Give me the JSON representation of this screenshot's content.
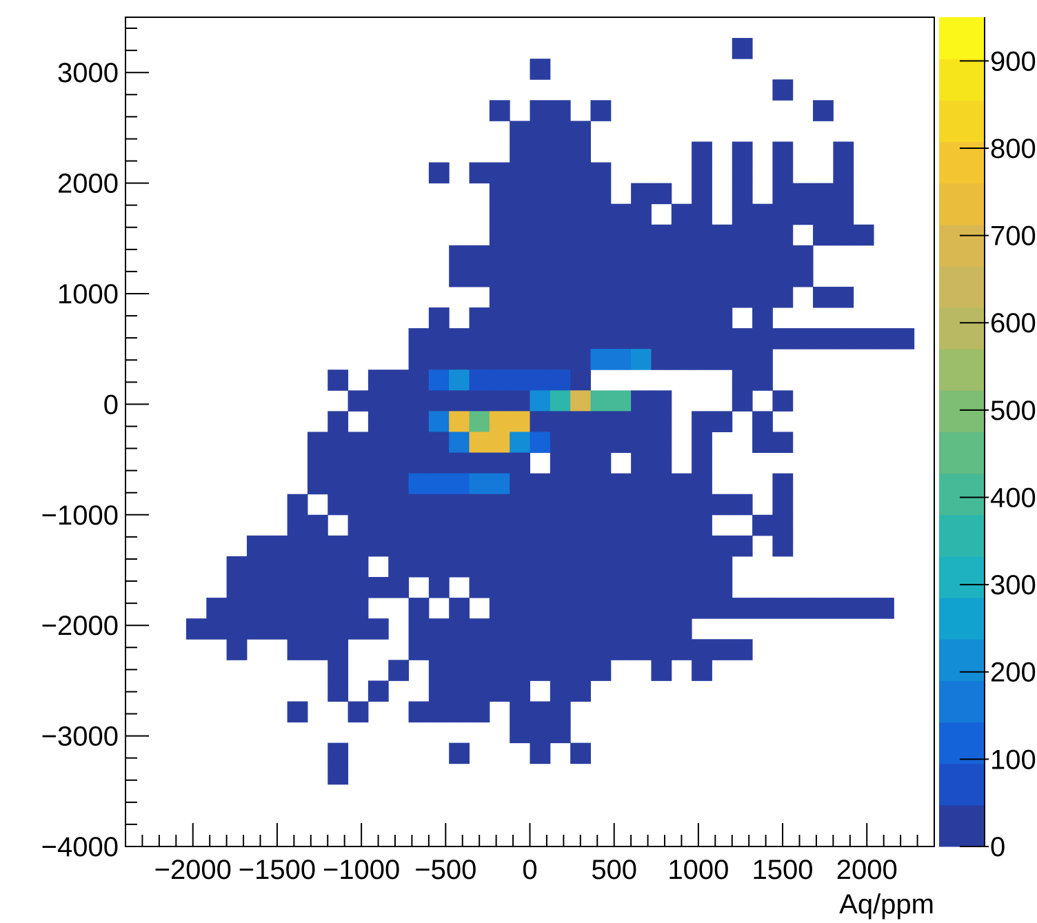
{
  "chart_data": {
    "type": "heatmap",
    "title": "",
    "xlabel": "Aq/ppm",
    "ylabel": "",
    "xlim": [
      -2400,
      2400
    ],
    "ylim": [
      -4000,
      3500
    ],
    "x_ticks": [
      -2000,
      -1500,
      -1000,
      -500,
      0,
      500,
      1000,
      1500,
      2000
    ],
    "x_tick_labels": [
      "−2000",
      "−1500",
      "−1000",
      "−500",
      "0",
      "500",
      "1000",
      "1500",
      "2000"
    ],
    "y_ticks": [
      -4000,
      -3000,
      -2000,
      -1000,
      0,
      1000,
      2000,
      3000
    ],
    "y_tick_labels": [
      "−4000",
      "−3000",
      "−2000",
      "−1000",
      "0",
      "1000",
      "2000",
      "3000"
    ],
    "colorbar": {
      "min": 0,
      "max": 950,
      "ticks": [
        0,
        100,
        200,
        300,
        400,
        500,
        600,
        700,
        800,
        900
      ],
      "tick_labels": [
        "0",
        "100",
        "200",
        "300",
        "400",
        "500",
        "600",
        "700",
        "800",
        "900"
      ],
      "palette": [
        "#2a3d9f",
        "#1b4fc8",
        "#1563d8",
        "#1479d8",
        "#138ed6",
        "#12a2cf",
        "#1eb1c0",
        "#2db6ab",
        "#46ba96",
        "#60bd84",
        "#7ebd74",
        "#9cbd69",
        "#b8b962",
        "#cbb75e",
        "#dab851",
        "#ebbd3d",
        "#f3c631",
        "#f5d625",
        "#f7e51c",
        "#fbf718"
      ]
    },
    "grid": false,
    "bins": {
      "x_edges_start": -2400,
      "x_bin_width": 120,
      "nx": 40,
      "y_edges_start": -4000,
      "y_bin_width": 187.5,
      "ny": 40
    },
    "data_rows_top_to_bottom": [
      "........................................",
      "..............................#.........",
      "....................#...................",
      "................................?.......",
      "..................#.##.#..........#.....",
      "...................####..................",
      "...................####.....#.#.#..#....",
      "...............#.#######....#.#.#..#....",
      "..................######.##.#.#.####....",
      "..................########.##.######....",
      "..................###############.###...",
      "................##################......",
      "................##################......",
      "..................###############.##....",
      "...............#.#############.#........",
      "..............#########################.",
      "..............#########ffg######........",
      "..........#.###eghhhhh#.......##........",
      "...........#########gjrnl##...#.#.......",
      "..........#.###fkyss#######.##.#........",
      ".........#######fkkgz######.#..##.......",
      ".........###########.###.##.#...........",
      ".........#####eeeff##########...#.......",
      "........#.#####################.#.......",
      "........##.##################..##.......",
      "......#########################.#.......",
      ".....#######.#################..........",
      ".....#########.#.#############..........",
      "....########..#.#.####################..",
      "...##########.##############............",
      ".....#..###...#################.........",
      "..........#..#.#########..#.#...........",
      "..........#.#..#####.##.................",
      "........#..#..####.###...................",
      "...................###..................",
      "..........#.....#...#.#.................",
      "..........#.............................",
      "........................................",
      "........................................",
      "........................................"
    ]
  }
}
